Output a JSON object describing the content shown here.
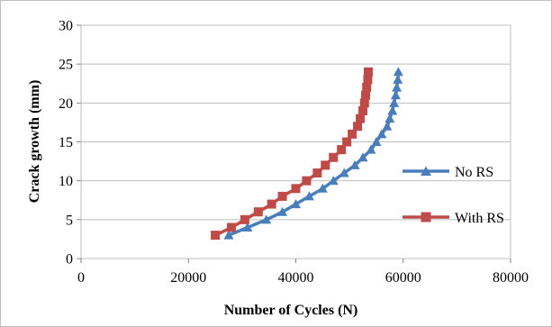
{
  "chart_data": {
    "type": "line",
    "title": "",
    "xlabel": "Number of Cycles (N)",
    "ylabel": "Crack growth (mm)",
    "xlim": [
      0,
      80000
    ],
    "ylim": [
      0,
      30
    ],
    "x_ticks": [
      0,
      20000,
      40000,
      60000,
      80000
    ],
    "y_ticks": [
      0,
      5,
      10,
      15,
      20,
      25,
      30
    ],
    "x_tick_labels": [
      "0",
      "20000",
      "40000",
      "60000",
      "80000"
    ],
    "y_tick_labels": [
      "0",
      "5",
      "10",
      "15",
      "20",
      "25",
      "30"
    ],
    "grid": "horizontal",
    "legend_position": "right",
    "series": [
      {
        "name": "No RS",
        "color": "#4a7ebb",
        "marker": "triangle",
        "points": [
          [
            27500,
            3
          ],
          [
            31000,
            4
          ],
          [
            34500,
            5
          ],
          [
            37500,
            6
          ],
          [
            40000,
            7
          ],
          [
            42500,
            8
          ],
          [
            45000,
            9
          ],
          [
            47000,
            10
          ],
          [
            49000,
            11
          ],
          [
            51000,
            12
          ],
          [
            52500,
            13
          ],
          [
            54000,
            14
          ],
          [
            55000,
            15
          ],
          [
            56000,
            16
          ],
          [
            57000,
            17
          ],
          [
            57500,
            18
          ],
          [
            58000,
            19
          ],
          [
            58300,
            20
          ],
          [
            58600,
            21
          ],
          [
            58800,
            22
          ],
          [
            59000,
            23
          ],
          [
            59100,
            24
          ]
        ]
      },
      {
        "name": "With RS",
        "color": "#be4b48",
        "marker": "square",
        "points": [
          [
            25000,
            3
          ],
          [
            28000,
            4
          ],
          [
            30500,
            5
          ],
          [
            33000,
            6
          ],
          [
            35500,
            7
          ],
          [
            37500,
            8
          ],
          [
            40000,
            9
          ],
          [
            42000,
            10
          ],
          [
            44000,
            11
          ],
          [
            45500,
            12
          ],
          [
            47000,
            13
          ],
          [
            48500,
            14
          ],
          [
            49500,
            15
          ],
          [
            50500,
            16
          ],
          [
            51500,
            17
          ],
          [
            52000,
            18
          ],
          [
            52500,
            19
          ],
          [
            52800,
            20
          ],
          [
            53000,
            21
          ],
          [
            53200,
            22
          ],
          [
            53400,
            23
          ],
          [
            53500,
            24
          ]
        ]
      }
    ]
  }
}
